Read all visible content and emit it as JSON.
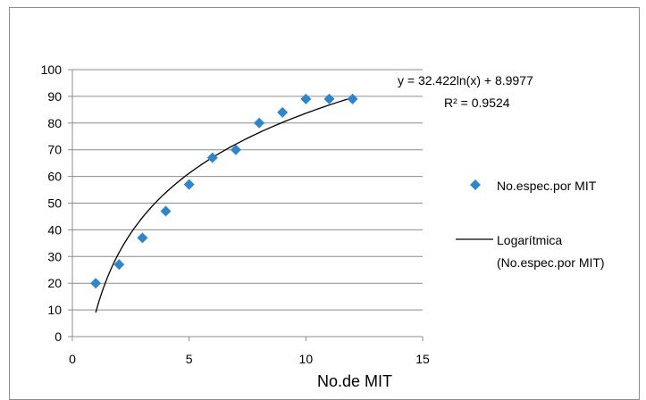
{
  "chart_data": {
    "type": "scatter",
    "xlabel": "No.de MIT",
    "ylabel": "",
    "xlim": [
      0,
      15
    ],
    "ylim": [
      0,
      100
    ],
    "x_ticks": [
      "0",
      "5",
      "10",
      "15"
    ],
    "y_ticks": [
      "0",
      "10",
      "20",
      "30",
      "40",
      "50",
      "60",
      "70",
      "80",
      "90",
      "100"
    ],
    "grid": "horizontal",
    "legend_position": "right",
    "series": [
      {
        "name": "No.espec.por MIT",
        "marker": "diamond",
        "color": "#2e86c8",
        "x": [
          1,
          2,
          3,
          4,
          5,
          6,
          7,
          8,
          9,
          10,
          11,
          12
        ],
        "y": [
          20,
          27,
          37,
          47,
          57,
          67,
          70,
          80,
          84,
          89,
          89,
          89
        ]
      }
    ],
    "trendline": {
      "name_line1": "Logarítmica",
      "name_line2": "(No.espec.por MIT)",
      "type": "logarithmic",
      "a": 32.422,
      "b": 8.9977,
      "x_range": [
        1,
        12
      ],
      "color": "#000000",
      "equation": "y = 32.422ln(x) + 8.9977",
      "r2": "R² = 0.9524"
    }
  }
}
